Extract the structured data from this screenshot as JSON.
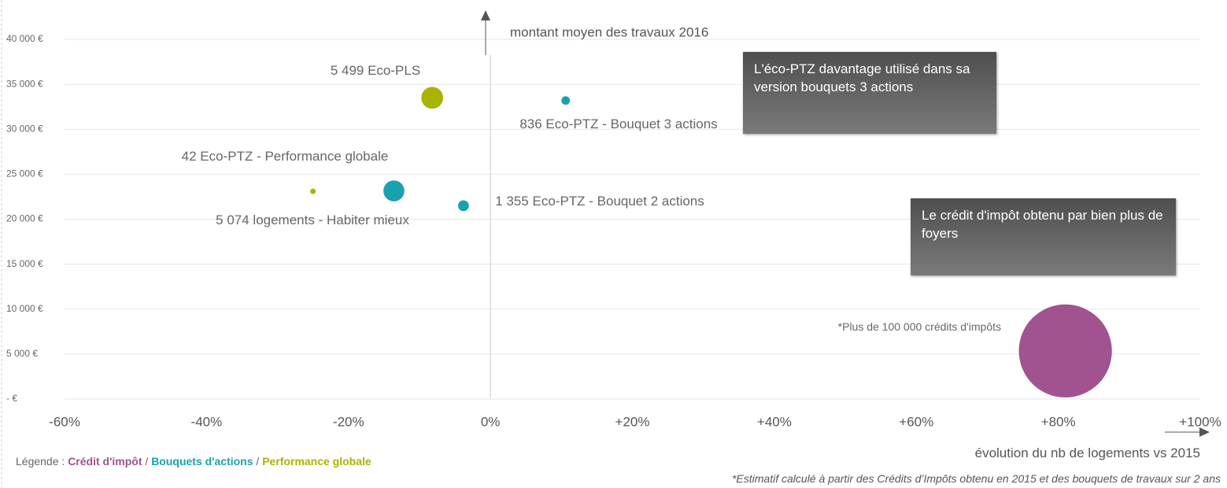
{
  "chart_data": {
    "type": "bubble",
    "y_label": "montant moyen des travaux 2016",
    "x_label": "évolution du nb de logements vs 2015",
    "xlim": [
      -60,
      100
    ],
    "xticks": [
      {
        "value": -60,
        "label": "-60%"
      },
      {
        "value": -40,
        "label": "-40%"
      },
      {
        "value": -20,
        "label": "-20%"
      },
      {
        "value": 0,
        "label": "0%"
      },
      {
        "value": 20,
        "label": "+20%"
      },
      {
        "value": 40,
        "label": "+40%"
      },
      {
        "value": 60,
        "label": "+60%"
      },
      {
        "value": 80,
        "label": "+80%"
      },
      {
        "value": 100,
        "label": "+100%"
      }
    ],
    "ylim": [
      0,
      40000
    ],
    "yticks": [
      {
        "value": 0,
        "label": "-  €"
      },
      {
        "value": 5000,
        "label": "5 000 €"
      },
      {
        "value": 10000,
        "label": "10 000 €"
      },
      {
        "value": 15000,
        "label": "15 000 €"
      },
      {
        "value": 20000,
        "label": "20 000 €"
      },
      {
        "value": 25000,
        "label": "25 000 €"
      },
      {
        "value": 30000,
        "label": "30 000 €"
      },
      {
        "value": 35000,
        "label": "35 000 €"
      },
      {
        "value": 40000,
        "label": "40 000 €"
      }
    ],
    "grid": true,
    "series": [
      {
        "name": "Crédit d'impôt",
        "color": "#a0538f",
        "x": [
          81.0
        ],
        "y": [
          5350
        ],
        "sizes": [
          100000
        ],
        "labels": [
          "*Plus de  100 000 crédits d'impôts"
        ]
      },
      {
        "name": "Bouquets d'actions",
        "color": "#1aa1b0",
        "x": [
          10.6,
          -13.6,
          -3.8
        ],
        "y": [
          33200,
          23150,
          21500
        ],
        "sizes": [
          836,
          5074,
          1355
        ],
        "labels": [
          "836 Eco-PTZ - Bouquet 3 actions",
          "5 074 logements - Habiter mieux",
          "1 355 Eco-PTZ - Bouquet 2 actions"
        ]
      },
      {
        "name": "Performance globale",
        "color": "#a8b400",
        "x": [
          -8.2,
          -25.0
        ],
        "y": [
          33500,
          23100
        ],
        "sizes": [
          5499,
          42
        ],
        "labels": [
          "5 499 Eco-PLS",
          "42 Eco-PTZ - Performance globale"
        ]
      }
    ],
    "legend_prefix": "Légende :",
    "legend_separator": "/",
    "annotations": [
      "L'éco-PTZ davantage utilisé dans sa version  bouquets 3 actions",
      "Le crédit d'impôt obtenu par bien plus de foyers"
    ],
    "footnote": "*Estimatif calculé à partir des Crédits d’Impôts obtenu en 2015 et des bouquets de travaux sur 2 ans"
  }
}
